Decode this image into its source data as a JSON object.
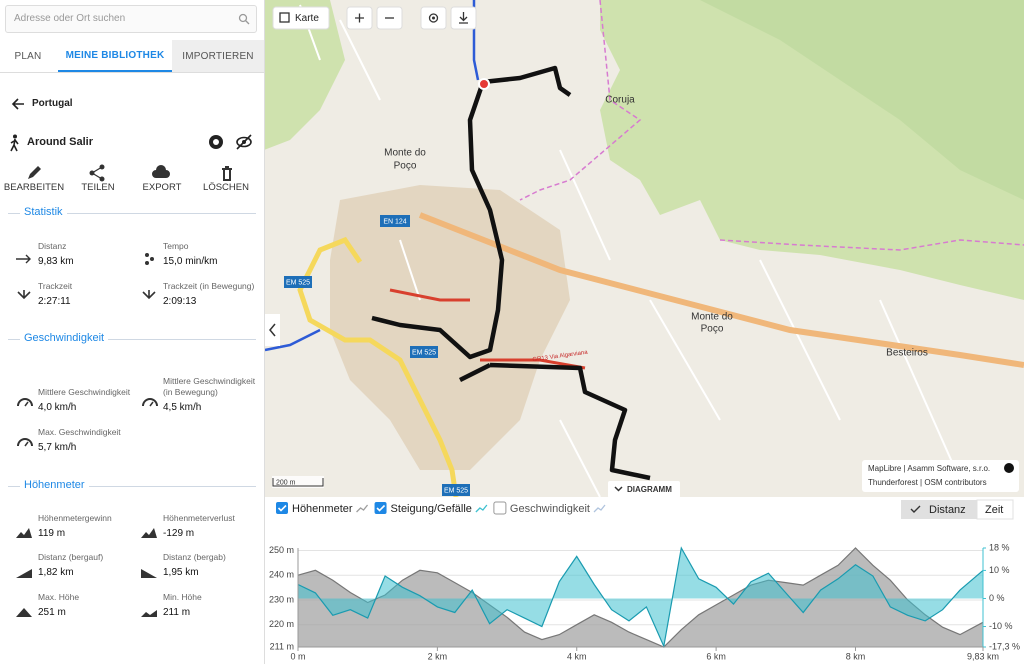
{
  "search": {
    "placeholder": "Adresse oder Ort suchen"
  },
  "tabs": [
    "PLAN",
    "MEINE BIBLIOTHEK",
    "IMPORTIEREN"
  ],
  "breadcrumb": "Portugal",
  "track_name": "Around Salir",
  "actions": [
    "BEARBEITEN",
    "TEILEN",
    "EXPORT",
    "LÖSCHEN"
  ],
  "sections": [
    {
      "title": "Statistik",
      "items": [
        {
          "label": "Distanz",
          "value": "9,83 km"
        },
        {
          "label": "Tempo",
          "value": "15,0 min/km"
        },
        {
          "label": "Trackzeit",
          "value": "2:27:11"
        },
        {
          "label": "Trackzeit (in Bewegung)",
          "value": "2:09:13"
        }
      ]
    },
    {
      "title": "Geschwindigkeit",
      "items": [
        {
          "label": "Mittlere Geschwindigkeit",
          "value": "4,0 km/h"
        },
        {
          "label": "Mittlere Geschwindigkeit (in Bewegung)",
          "value": "4,5 km/h"
        },
        {
          "label": "Max. Geschwindigkeit",
          "value": "5,7 km/h"
        }
      ]
    },
    {
      "title": "Höhenmeter",
      "items": [
        {
          "label": "Höhenmetergewinn",
          "value": "119 m"
        },
        {
          "label": "Höhenmeterverlust",
          "value": "-129 m"
        },
        {
          "label": "Distanz (bergauf)",
          "value": "1,82 km"
        },
        {
          "label": "Distanz (bergab)",
          "value": "1,95 km"
        },
        {
          "label": "Max. Höhe",
          "value": "251 m"
        },
        {
          "label": "Min. Höhe",
          "value": "211 m"
        }
      ]
    }
  ],
  "map": {
    "button": "Karte",
    "labels": [
      "Coruja",
      "Monte do",
      "Poço",
      "Monte do",
      "Poço",
      "Besteiros",
      "GR13 Via Algarviana"
    ],
    "roads": [
      "EN 124",
      "EM 525",
      "EM 525",
      "EM 525"
    ],
    "scale": "200 m",
    "attribution": [
      "MapLibre | Asamm Software, s.r.o.",
      "Thunderforest | OSM contributors"
    ],
    "diagram_button": "DIAGRAMM"
  },
  "chart_data": {
    "type": "area",
    "x": [
      0,
      0.25,
      0.5,
      0.75,
      1,
      1.25,
      1.5,
      1.75,
      2,
      2.25,
      2.5,
      2.75,
      3,
      3.25,
      3.5,
      3.75,
      4,
      4.25,
      4.5,
      4.75,
      5,
      5.25,
      5.5,
      5.75,
      6,
      6.25,
      6.5,
      6.75,
      7,
      7.25,
      7.5,
      7.75,
      8,
      8.25,
      8.5,
      8.75,
      9,
      9.25,
      9.5,
      9.83
    ],
    "series": [
      {
        "name": "Höhenmeter",
        "color": "#9e9e9e",
        "values": [
          240,
          242,
          238,
          233,
          229,
          232,
          238,
          242,
          241,
          237,
          233,
          228,
          223,
          217,
          214,
          216,
          220,
          224,
          221,
          217,
          214,
          211,
          218,
          224,
          228,
          232,
          236,
          238,
          237,
          236,
          240,
          244,
          251,
          244,
          238,
          230,
          224,
          219,
          216,
          221
        ]
      },
      {
        "name": "Steigung/Gefälle",
        "color": "#3fc1d0",
        "axis": "y2",
        "values": [
          5,
          2,
          -6,
          -4,
          -7,
          8,
          4,
          1,
          -3,
          -5,
          3,
          -9,
          -4,
          -7,
          -10,
          6,
          15,
          5,
          -4,
          -8,
          -3,
          -17,
          18,
          7,
          4,
          -2,
          6,
          9,
          2,
          -5,
          3,
          7,
          12,
          8,
          -3,
          -6,
          -8,
          -4,
          3,
          10
        ]
      }
    ],
    "inactive_series": [
      {
        "name": "Geschwindigkeit",
        "color": "#b0c4de"
      }
    ],
    "x_modes": [
      "Distanz",
      "Zeit"
    ],
    "xlim": [
      0,
      9.83
    ],
    "xticks": [
      {
        "value": 0,
        "label": "0 m"
      },
      {
        "value": 2,
        "label": "2 km"
      },
      {
        "value": 4,
        "label": "4 km"
      },
      {
        "value": 6,
        "label": "6 km"
      },
      {
        "value": 8,
        "label": "8 km"
      },
      {
        "value": 9.83,
        "label": "9,83 km"
      }
    ],
    "ylim": [
      211,
      251
    ],
    "yticks": [
      {
        "value": 250,
        "label": "250 m"
      },
      {
        "value": 240,
        "label": "240 m"
      },
      {
        "value": 230,
        "label": "230 m"
      },
      {
        "value": 220,
        "label": "220 m"
      },
      {
        "value": 211,
        "label": "211 m"
      }
    ],
    "y2lim": [
      -17.3,
      18
    ],
    "y2ticks": [
      {
        "value": 18,
        "label": "18 %"
      },
      {
        "value": 10,
        "label": "10 %"
      },
      {
        "value": 0,
        "label": "0 %"
      },
      {
        "value": -10,
        "label": "-10 %"
      },
      {
        "value": -17.3,
        "label": "-17,3 %"
      }
    ],
    "grid": true
  }
}
